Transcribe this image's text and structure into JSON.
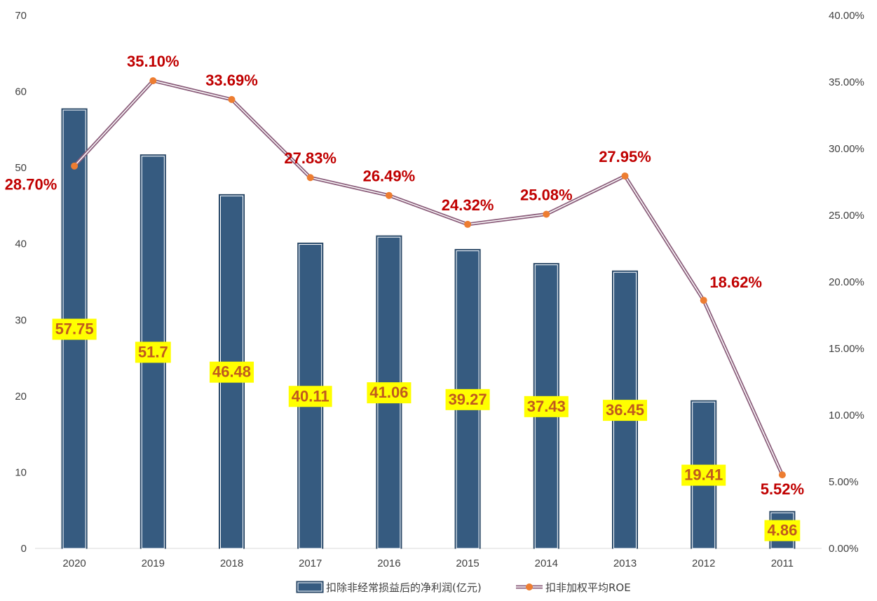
{
  "chart_data": {
    "type": "bar",
    "categories": [
      "2020",
      "2019",
      "2018",
      "2017",
      "2016",
      "2015",
      "2014",
      "2013",
      "2012",
      "2011"
    ],
    "series": [
      {
        "name": "扣除非经常损益后的净利润(亿元)",
        "type": "bar",
        "axis": "left",
        "values": [
          57.75,
          51.7,
          46.48,
          40.11,
          41.06,
          39.27,
          37.43,
          36.45,
          19.41,
          4.86
        ],
        "labels": [
          "57.75",
          "51.7",
          "46.48",
          "40.11",
          "41.06",
          "39.27",
          "37.43",
          "36.45",
          "19.41",
          "4.86"
        ],
        "color": "#365B80"
      },
      {
        "name": "扣非加权平均ROE",
        "type": "line",
        "axis": "right",
        "values": [
          28.7,
          35.1,
          33.69,
          27.83,
          26.49,
          24.32,
          25.08,
          27.95,
          18.62,
          5.52
        ],
        "labels": [
          "28.70%",
          "35.10%",
          "33.69%",
          "27.83%",
          "26.49%",
          "24.32%",
          "25.08%",
          "27.95%",
          "18.62%",
          "5.52%"
        ],
        "color": "#8B5E7B",
        "marker_color": "#ED7D31"
      }
    ],
    "y_left": {
      "range": [
        0,
        70
      ],
      "ticks": [
        "0",
        "10",
        "20",
        "30",
        "40",
        "50",
        "60",
        "70"
      ]
    },
    "y_right": {
      "range": [
        0,
        40
      ],
      "ticks": [
        "0.00%",
        "5.00%",
        "10.00%",
        "15.00%",
        "20.00%",
        "25.00%",
        "30.00%",
        "35.00%",
        "40.00%"
      ]
    },
    "grid": false,
    "legend_position": "bottom",
    "bar_label_style": {
      "text_color": "#C05A1E",
      "background": "#FFFF00"
    },
    "line_label_color": "#C00000"
  }
}
